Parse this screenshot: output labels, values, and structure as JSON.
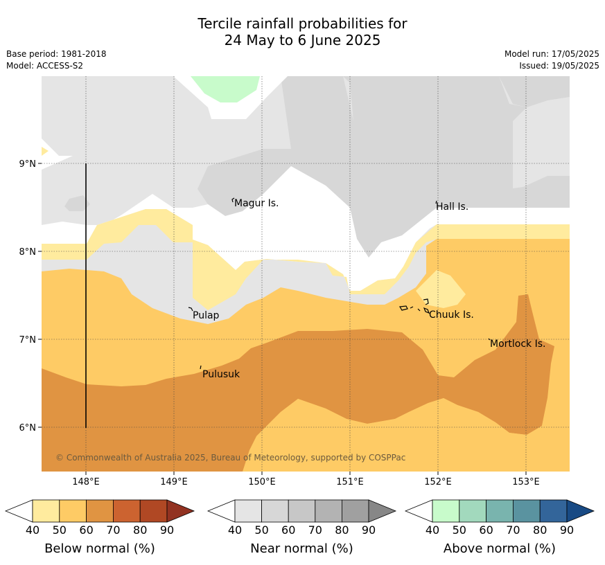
{
  "title_line1": "Tercile rainfall probabilities for",
  "title_line2": "24 May to 6 June 2025",
  "base_period": "Base period: 1981-2018",
  "model": "Model: ACCESS-S2",
  "model_run": "Model run: 17/05/2025",
  "issued": "Issued: 19/05/2025",
  "copyright": "© Commonwealth of Australia 2025, Bureau of Meteorology, supported by COSPPac",
  "lon_ticks": [
    "148°E",
    "149°E",
    "150°E",
    "151°E",
    "152°E",
    "153°E"
  ],
  "lat_ticks": [
    "9°N",
    "8°N",
    "7°N",
    "6°N"
  ],
  "places": {
    "magur": "Magur Is.",
    "hall": "Hall Is.",
    "pulap": "Pulap",
    "chuuk": "Chuuk Is.",
    "mortlock": "Mortlock Is.",
    "pulusuk": "Pulusuk"
  },
  "legend": {
    "below": {
      "title": "Below normal (%)",
      "ticks": [
        "40",
        "50",
        "60",
        "70",
        "80",
        "90"
      ],
      "colors": [
        "#ffeb9e",
        "#fecb65",
        "#e09442",
        "#cc6330",
        "#b04824",
        "#923221"
      ]
    },
    "near": {
      "title": "Near normal (%)",
      "ticks": [
        "40",
        "50",
        "60",
        "70",
        "80",
        "90"
      ],
      "colors": [
        "#e5e5e5",
        "#d7d7d7",
        "#c7c7c7",
        "#b3b3b3",
        "#a0a0a0",
        "#878787"
      ]
    },
    "above": {
      "title": "Above normal (%)",
      "ticks": [
        "40",
        "50",
        "60",
        "70",
        "80",
        "90"
      ],
      "colors": [
        "#c8fbcb",
        "#a2d9bd",
        "#79b4ae",
        "#5a93a0",
        "#33659a",
        "#184a84"
      ]
    }
  },
  "map_colors": {
    "near_40": "#e5e5e5",
    "near_50": "#d7d7d7",
    "below_40": "#ffeb9e",
    "below_50": "#fecb65",
    "below_60": "#e09442",
    "above_40": "#c8fbcb"
  }
}
